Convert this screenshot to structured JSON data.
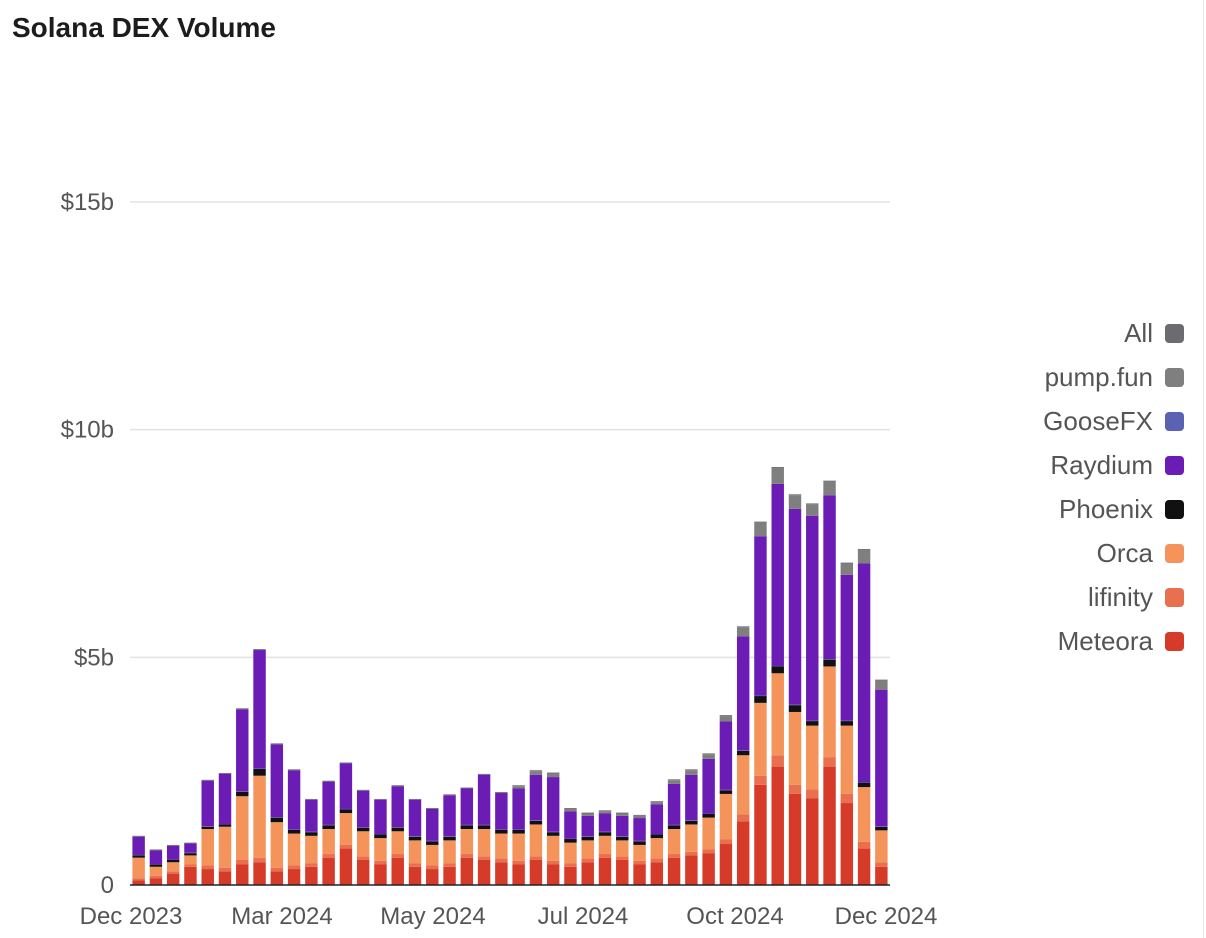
{
  "chart_data": {
    "type": "bar",
    "stacked": true,
    "title": "Solana DEX Volume",
    "y_ticks": [
      {
        "value": 0,
        "label": "0"
      },
      {
        "value": 5,
        "label": "$5b"
      },
      {
        "value": 10,
        "label": "$10b"
      },
      {
        "value": 15,
        "label": "$15b"
      }
    ],
    "x_ticks": [
      "Dec 2023",
      "Mar 2024",
      "May 2024",
      "Jul 2024",
      "Oct 2024",
      "Dec 2024"
    ],
    "ylim": [
      0,
      17.3
    ],
    "unit": "billions USD (daily)",
    "grid": true,
    "legend_position": "right",
    "series": [
      {
        "name": "Meteora",
        "color": "#d63b2a",
        "values": [
          0.1,
          0.15,
          0.25,
          0.4,
          0.35,
          0.3,
          0.45,
          0.5,
          0.3,
          0.35,
          0.4,
          0.6,
          0.8,
          0.55,
          0.45,
          0.6,
          0.4,
          0.35,
          0.4,
          0.6,
          0.55,
          0.5,
          0.45,
          0.55,
          0.45,
          0.4,
          0.5,
          0.6,
          0.55,
          0.45,
          0.5,
          0.6,
          0.65,
          0.7,
          0.9,
          1.4,
          2.2,
          2.6,
          2.0,
          1.9,
          2.6,
          1.8,
          0.8,
          0.4
        ]
      },
      {
        "name": "lifinity",
        "color": "#e8704f",
        "values": [
          0.05,
          0.05,
          0.05,
          0.05,
          0.08,
          0.08,
          0.1,
          0.1,
          0.08,
          0.08,
          0.08,
          0.08,
          0.08,
          0.08,
          0.08,
          0.08,
          0.08,
          0.08,
          0.08,
          0.08,
          0.08,
          0.08,
          0.08,
          0.08,
          0.08,
          0.08,
          0.08,
          0.08,
          0.08,
          0.08,
          0.08,
          0.08,
          0.08,
          0.08,
          0.1,
          0.15,
          0.2,
          0.25,
          0.2,
          0.2,
          0.2,
          0.2,
          0.15,
          0.1
        ]
      },
      {
        "name": "Orca",
        "color": "#f4935a",
        "values": [
          0.45,
          0.2,
          0.2,
          0.2,
          0.8,
          0.9,
          1.4,
          1.8,
          1.0,
          0.7,
          0.6,
          0.55,
          0.7,
          0.55,
          0.5,
          0.5,
          0.5,
          0.45,
          0.5,
          0.55,
          0.6,
          0.55,
          0.6,
          0.7,
          0.55,
          0.45,
          0.4,
          0.4,
          0.35,
          0.35,
          0.45,
          0.55,
          0.6,
          0.7,
          1.0,
          1.3,
          1.6,
          1.8,
          1.6,
          1.4,
          2.0,
          1.5,
          1.2,
          0.7
        ]
      },
      {
        "name": "Phoenix",
        "color": "#111111",
        "values": [
          0.05,
          0.05,
          0.05,
          0.05,
          0.05,
          0.05,
          0.1,
          0.15,
          0.1,
          0.08,
          0.08,
          0.08,
          0.08,
          0.08,
          0.08,
          0.08,
          0.08,
          0.08,
          0.08,
          0.08,
          0.08,
          0.08,
          0.08,
          0.08,
          0.08,
          0.08,
          0.08,
          0.08,
          0.08,
          0.08,
          0.08,
          0.08,
          0.08,
          0.08,
          0.08,
          0.1,
          0.15,
          0.15,
          0.15,
          0.1,
          0.15,
          0.1,
          0.1,
          0.08
        ]
      },
      {
        "name": "GooseFX",
        "color": "#5b62b3",
        "values": [
          0.01,
          0.01,
          0.01,
          0.01,
          0.01,
          0.01,
          0.01,
          0.01,
          0.01,
          0.01,
          0.01,
          0.01,
          0.01,
          0.01,
          0.01,
          0.01,
          0.01,
          0.01,
          0.01,
          0.01,
          0.01,
          0.01,
          0.01,
          0.01,
          0.01,
          0.01,
          0.01,
          0.01,
          0.01,
          0.01,
          0.01,
          0.01,
          0.01,
          0.01,
          0.01,
          0.01,
          0.01,
          0.01,
          0.01,
          0.01,
          0.01,
          0.01,
          0.01,
          0.01
        ]
      },
      {
        "name": "Raydium",
        "color": "#6a1cb5",
        "values": [
          0.4,
          0.3,
          0.3,
          0.2,
          1.0,
          1.1,
          1.8,
          2.6,
          1.6,
          1.3,
          0.7,
          0.95,
          1.0,
          0.8,
          0.75,
          0.9,
          0.8,
          0.7,
          0.9,
          0.8,
          1.1,
          0.8,
          0.9,
          1.0,
          1.2,
          0.6,
          0.45,
          0.4,
          0.45,
          0.5,
          0.65,
          0.9,
          1.0,
          1.2,
          1.5,
          2.5,
          3.5,
          4.0,
          4.3,
          4.5,
          3.6,
          3.2,
          4.8,
          3.0
        ]
      },
      {
        "name": "pump.fun",
        "color": "#7f7f7f",
        "values": [
          0,
          0,
          0,
          0,
          0,
          0,
          0,
          0,
          0,
          0,
          0,
          0,
          0,
          0,
          0,
          0,
          0,
          0,
          0,
          0,
          0,
          0,
          0.05,
          0.08,
          0.08,
          0.05,
          0.05,
          0.05,
          0.05,
          0.05,
          0.05,
          0.08,
          0.1,
          0.1,
          0.12,
          0.2,
          0.3,
          0.35,
          0.3,
          0.25,
          0.3,
          0.25,
          0.3,
          0.2
        ]
      },
      {
        "name": "All",
        "color": "#6b6b70",
        "values": [
          0.02,
          0.02,
          0.02,
          0.02,
          0.02,
          0.02,
          0.02,
          0.02,
          0.02,
          0.02,
          0.02,
          0.02,
          0.02,
          0.02,
          0.02,
          0.02,
          0.02,
          0.02,
          0.02,
          0.02,
          0.02,
          0.02,
          0.02,
          0.02,
          0.02,
          0.02,
          0.02,
          0.02,
          0.02,
          0.02,
          0.02,
          0.02,
          0.02,
          0.02,
          0.02,
          0.02,
          0.02,
          0.02,
          0.02,
          0.02,
          0.02,
          0.02,
          0.02,
          0.02
        ]
      }
    ],
    "legend_order": [
      "All",
      "pump.fun",
      "GooseFX",
      "Raydium",
      "Phoenix",
      "Orca",
      "lifinity",
      "Meteora"
    ]
  }
}
